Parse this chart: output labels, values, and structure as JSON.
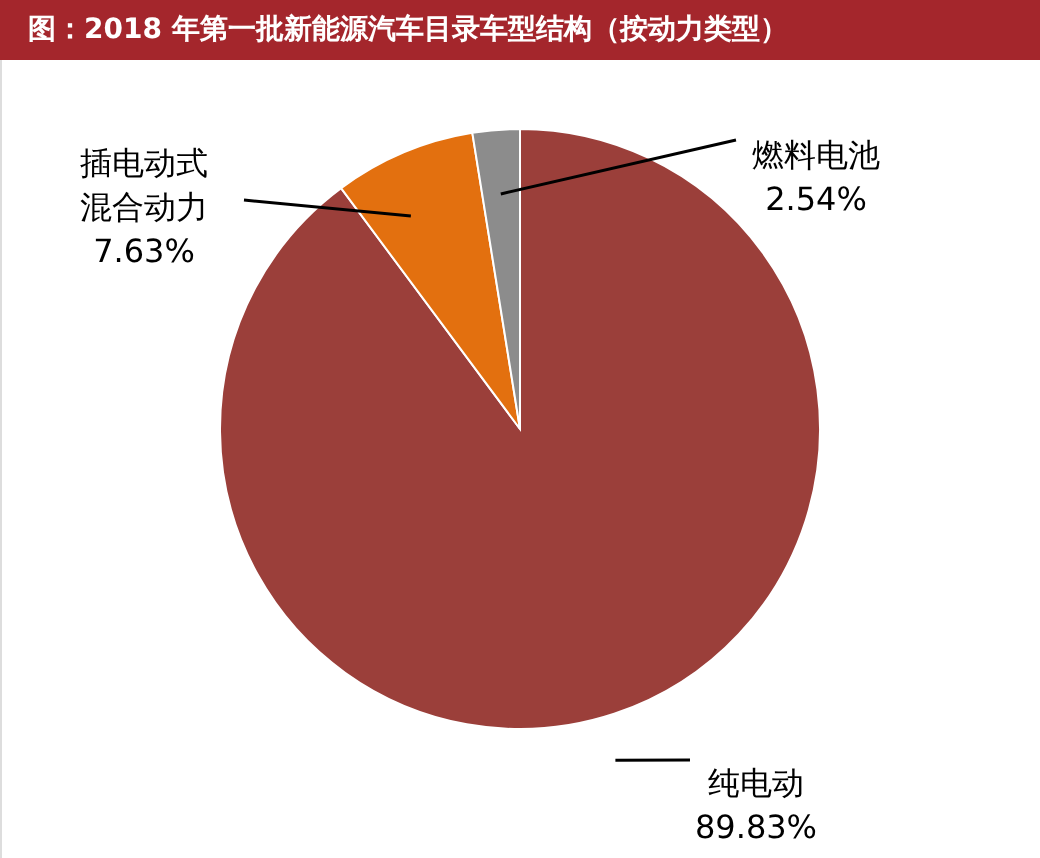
{
  "chart_data": {
    "type": "pie",
    "title": "图：2018 年第一批新能源汽车目录车型结构（按动力类型）",
    "categories": [
      "纯电动",
      "插电动式混合动力",
      "燃料电池"
    ],
    "values": [
      89.83,
      7.63,
      2.54
    ],
    "colors": [
      "#9b3f3a",
      "#e3700f",
      "#8c8c8c"
    ],
    "value_labels": [
      "89.83%",
      "7.63%",
      "2.54%"
    ],
    "legend": false
  }
}
